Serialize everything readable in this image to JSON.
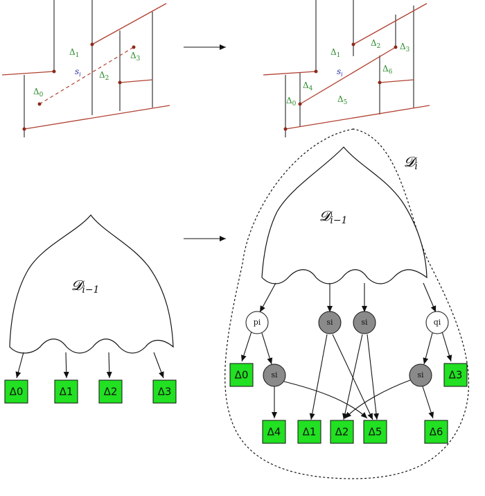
{
  "top_left": {
    "labels": {
      "d0": "Δ",
      "d0_sub": "0",
      "d1": "Δ",
      "d1_sub": "1",
      "d2": "Δ",
      "d2_sub": "2",
      "d3": "Δ",
      "d3_sub": "3",
      "s": "s",
      "s_sub": "i"
    }
  },
  "top_right": {
    "labels": {
      "d0": "Δ",
      "d0_sub": "0",
      "d1": "Δ",
      "d1_sub": "1",
      "d2": "Δ",
      "d2_sub": "2",
      "d3": "Δ",
      "d3_sub": "3",
      "d4": "Δ",
      "d4_sub": "4",
      "d5": "Δ",
      "d5_sub": "5",
      "d6": "Δ",
      "d6_sub": "6",
      "s": "s",
      "s_sub": "i"
    }
  },
  "bottom_left": {
    "structure": {
      "letter": "𝓓",
      "sub": "i−1"
    },
    "leaves": [
      "Δ0",
      "Δ1",
      "Δ2",
      "Δ3"
    ]
  },
  "bottom_right": {
    "outer": {
      "letter": "𝓓",
      "sub": "i"
    },
    "structure": {
      "letter": "𝓓",
      "sub": "i−1"
    },
    "nodes": {
      "pi": "pi",
      "si_a": "si",
      "si_b": "si",
      "qi": "qi",
      "si_c": "si",
      "si_d": "si"
    },
    "leaves": {
      "d0": "Δ0",
      "d3": "Δ3",
      "d4": "Δ4",
      "d1": "Δ1",
      "d2": "Δ2",
      "d5": "Δ5",
      "d6": "Δ6"
    }
  },
  "colors": {
    "segment": "#b04030",
    "leaf": "#22e022",
    "gray_node": "#8a8a8a",
    "green_label": "#2a8a2a",
    "blue_label": "#3030b0"
  }
}
